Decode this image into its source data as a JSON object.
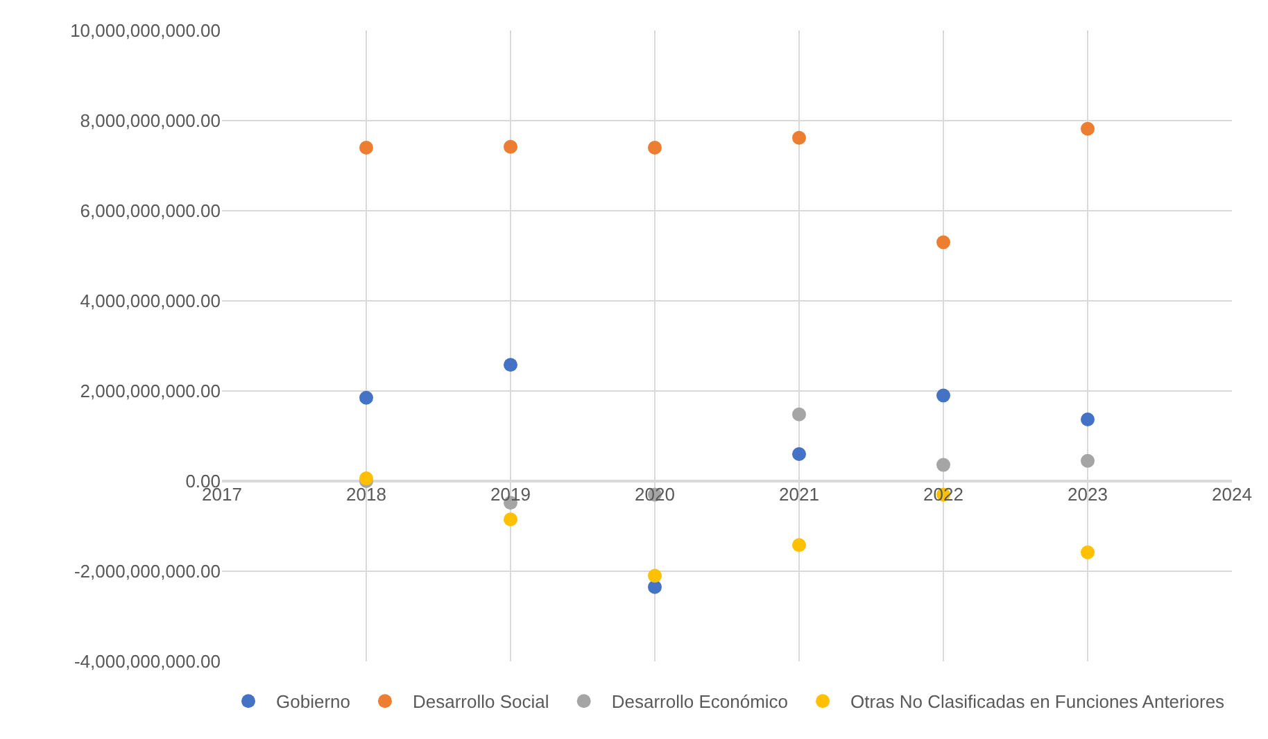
{
  "chart_data": {
    "type": "scatter",
    "x": [
      2018,
      2019,
      2020,
      2021,
      2022,
      2023
    ],
    "series": [
      {
        "name": "Gobierno",
        "color": "#4472c4",
        "values": [
          1850000000,
          2580000000,
          -2350000000,
          600000000,
          1900000000,
          1370000000
        ]
      },
      {
        "name": "Desarrollo Social",
        "color": "#ed7d31",
        "values": [
          7400000000,
          7420000000,
          7400000000,
          7620000000,
          5300000000,
          7820000000
        ]
      },
      {
        "name": "Desarrollo Económico",
        "color": "#a5a5a5",
        "values": [
          0,
          -480000000,
          -300000000,
          1480000000,
          360000000,
          450000000
        ]
      },
      {
        "name": "Otras No Clasificadas en Funciones Anteriores",
        "color": "#ffc000",
        "values": [
          60000000,
          -850000000,
          -2100000000,
          -1420000000,
          -300000000,
          -1580000000
        ]
      }
    ],
    "xlim": [
      2017,
      2024
    ],
    "xticks": [
      2017,
      2018,
      2019,
      2020,
      2021,
      2022,
      2023,
      2024
    ],
    "ylim": [
      -4000000000,
      10000000000
    ],
    "yticks": [
      {
        "value": -4000000000,
        "label": "-4,000,000,000.00"
      },
      {
        "value": -2000000000,
        "label": "-2,000,000,000.00"
      },
      {
        "value": 0,
        "label": "0.00"
      },
      {
        "value": 2000000000,
        "label": "2,000,000,000.00"
      },
      {
        "value": 4000000000,
        "label": "4,000,000,000.00"
      },
      {
        "value": 6000000000,
        "label": "6,000,000,000.00"
      },
      {
        "value": 8000000000,
        "label": "8,000,000,000.00"
      },
      {
        "value": 10000000000,
        "label": "10,000,000,000.00"
      }
    ],
    "grid": true,
    "legend": "bottom",
    "marker": "circle"
  }
}
